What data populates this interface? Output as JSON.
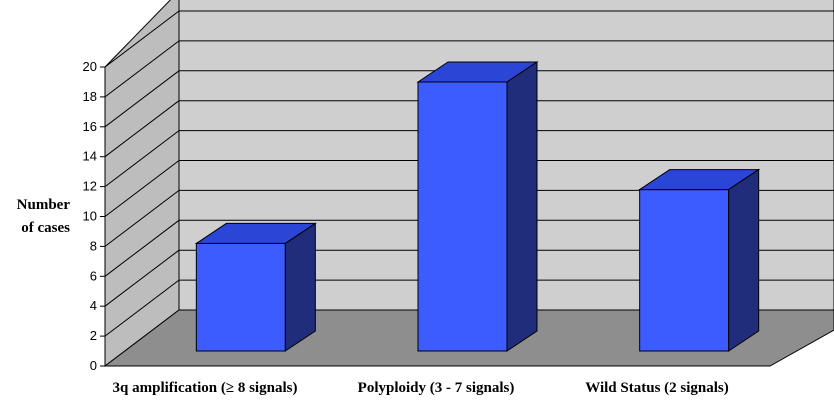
{
  "chart_data": {
    "type": "bar",
    "categories": [
      "3q amplification (≥ 8 signals)",
      "Polyploidy (3 - 7 signals)",
      "Wild Status (2 signals)"
    ],
    "values": [
      8,
      20,
      12
    ],
    "title": "",
    "xlabel": "",
    "ylabel_lines": [
      "Number",
      "of cases"
    ],
    "ylim": [
      0,
      20
    ],
    "yticks": [
      "0",
      "2",
      "4",
      "6",
      "8",
      "10",
      "12",
      "14",
      "16",
      "18",
      "20"
    ],
    "grid": true,
    "legend": "none",
    "colors": {
      "bar_front": "#3d5cff",
      "bar_top": "#2b45d6",
      "bar_side": "#1f2d7a",
      "back_wall": "#cfcfcf",
      "side_wall": "#bdbdbd",
      "floor": "#8e8e8e"
    }
  }
}
